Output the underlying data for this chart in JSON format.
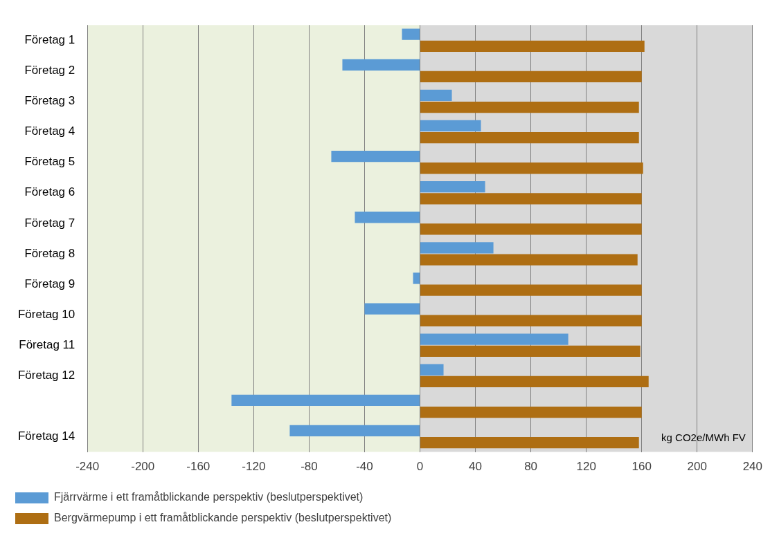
{
  "chart_data": {
    "type": "bar",
    "orientation": "horizontal",
    "categories": [
      "Företag 1",
      "Företag 2",
      "Företag 3",
      "Företag 4",
      "Företag 5",
      "Företag 6",
      "Företag 7",
      "Företag 8",
      "Företag 9",
      "Företag 10",
      "Företag 11",
      "Företag 12",
      null,
      "Företag 14"
    ],
    "series": [
      {
        "name": "Fjärrvärme i ett framåtblickande perspektiv (beslutperspektivet)",
        "color": "#5b9bd5",
        "values": [
          -13,
          -56,
          23,
          44,
          -64,
          47,
          -47,
          53,
          -5,
          -40,
          107,
          17,
          -136,
          -94
        ]
      },
      {
        "name": "Bergvärmepump i ett framåtblickande perspektiv (beslutperspektivet)",
        "color": "#ae6e13",
        "values": [
          162,
          160,
          158,
          158,
          161,
          160,
          160,
          157,
          160,
          160,
          159,
          165,
          160,
          158
        ]
      }
    ],
    "xlim": [
      -240,
      240
    ],
    "xticks": [
      -240,
      -200,
      -160,
      -120,
      -80,
      -40,
      0,
      40,
      80,
      120,
      160,
      200,
      240
    ],
    "grid": "x",
    "legend": "bottom",
    "bands": [
      {
        "axis": "x",
        "from": -240,
        "to": 0,
        "color": "#ebf1de"
      },
      {
        "axis": "x",
        "from": 0,
        "to": 240,
        "color": "#d9d9d9"
      }
    ],
    "annotations": [
      "kg CO2e/MWh FV"
    ]
  }
}
